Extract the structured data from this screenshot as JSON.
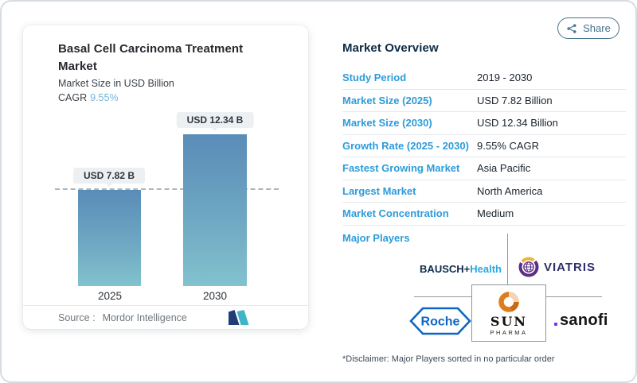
{
  "share": {
    "label": "Share"
  },
  "icons": {
    "share": "share-nodes-icon",
    "mordor_logo": "mordor-intelligence-mark",
    "viatris_globe": "viatris-globe-icon",
    "sun_swirl": "sun-pharma-swirl-icon",
    "roche_hexagon": "roche-hexagon-icon"
  },
  "colors": {
    "accent_blue": "#2d9cdb",
    "heading_navy": "#0d2b45",
    "cagr_blue": "#74b5d8",
    "share_teal": "#44718c",
    "bar_top": "#5a8cb8",
    "bar_bottom": "#82c2ce",
    "grid_gray": "#93999f"
  },
  "chart_card": {
    "title": "Basal Cell Carcinoma Treatment Market",
    "subtitle": "Market Size in USD Billion",
    "cagr_label": "CAGR",
    "cagr_value": "9.55%",
    "source_label": "Source :",
    "source_name": "Mordor Intelligence"
  },
  "chart_data": {
    "type": "bar",
    "categories": [
      "2025",
      "2030"
    ],
    "values": [
      7.82,
      12.34
    ],
    "value_labels": [
      "USD 7.82 B",
      "USD 12.34 B"
    ],
    "unit": "USD Billion",
    "title": "Basal Cell Carcinoma Treatment Market",
    "ylabel": "Market Size in USD Billion",
    "ylim": [
      0,
      14.1
    ],
    "reference_line": 7.82,
    "cagr_percent": 9.55,
    "grid": false,
    "legend": false
  },
  "overview": {
    "title": "Market Overview",
    "rows": [
      {
        "label": "Study Period",
        "value": "2019 - 2030"
      },
      {
        "label": "Market Size (2025)",
        "value": "USD 7.82 Billion"
      },
      {
        "label": "Market Size (2030)",
        "value": "USD 12.34 Billion"
      },
      {
        "label": "Growth Rate (2025 - 2030)",
        "value": "9.55% CAGR"
      },
      {
        "label": "Fastest Growing Market",
        "value": "Asia Pacific"
      },
      {
        "label": "Largest Market",
        "value": "North America"
      },
      {
        "label": "Market Concentration",
        "value": "Medium"
      }
    ],
    "major_players_label": "Major Players",
    "players": {
      "bausch_bold": "BAUSCH+",
      "bausch_light": "Health",
      "viatris": "VIATRIS",
      "roche": "Roche",
      "sun": "SUN",
      "sun_sub": "PHARMA",
      "sanofi": "sanofi"
    },
    "disclaimer": "*Disclaimer: Major Players sorted in no particular order"
  }
}
